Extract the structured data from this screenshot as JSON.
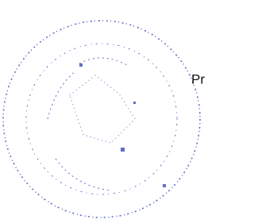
{
  "document": {
    "text": "Pr"
  }
}
